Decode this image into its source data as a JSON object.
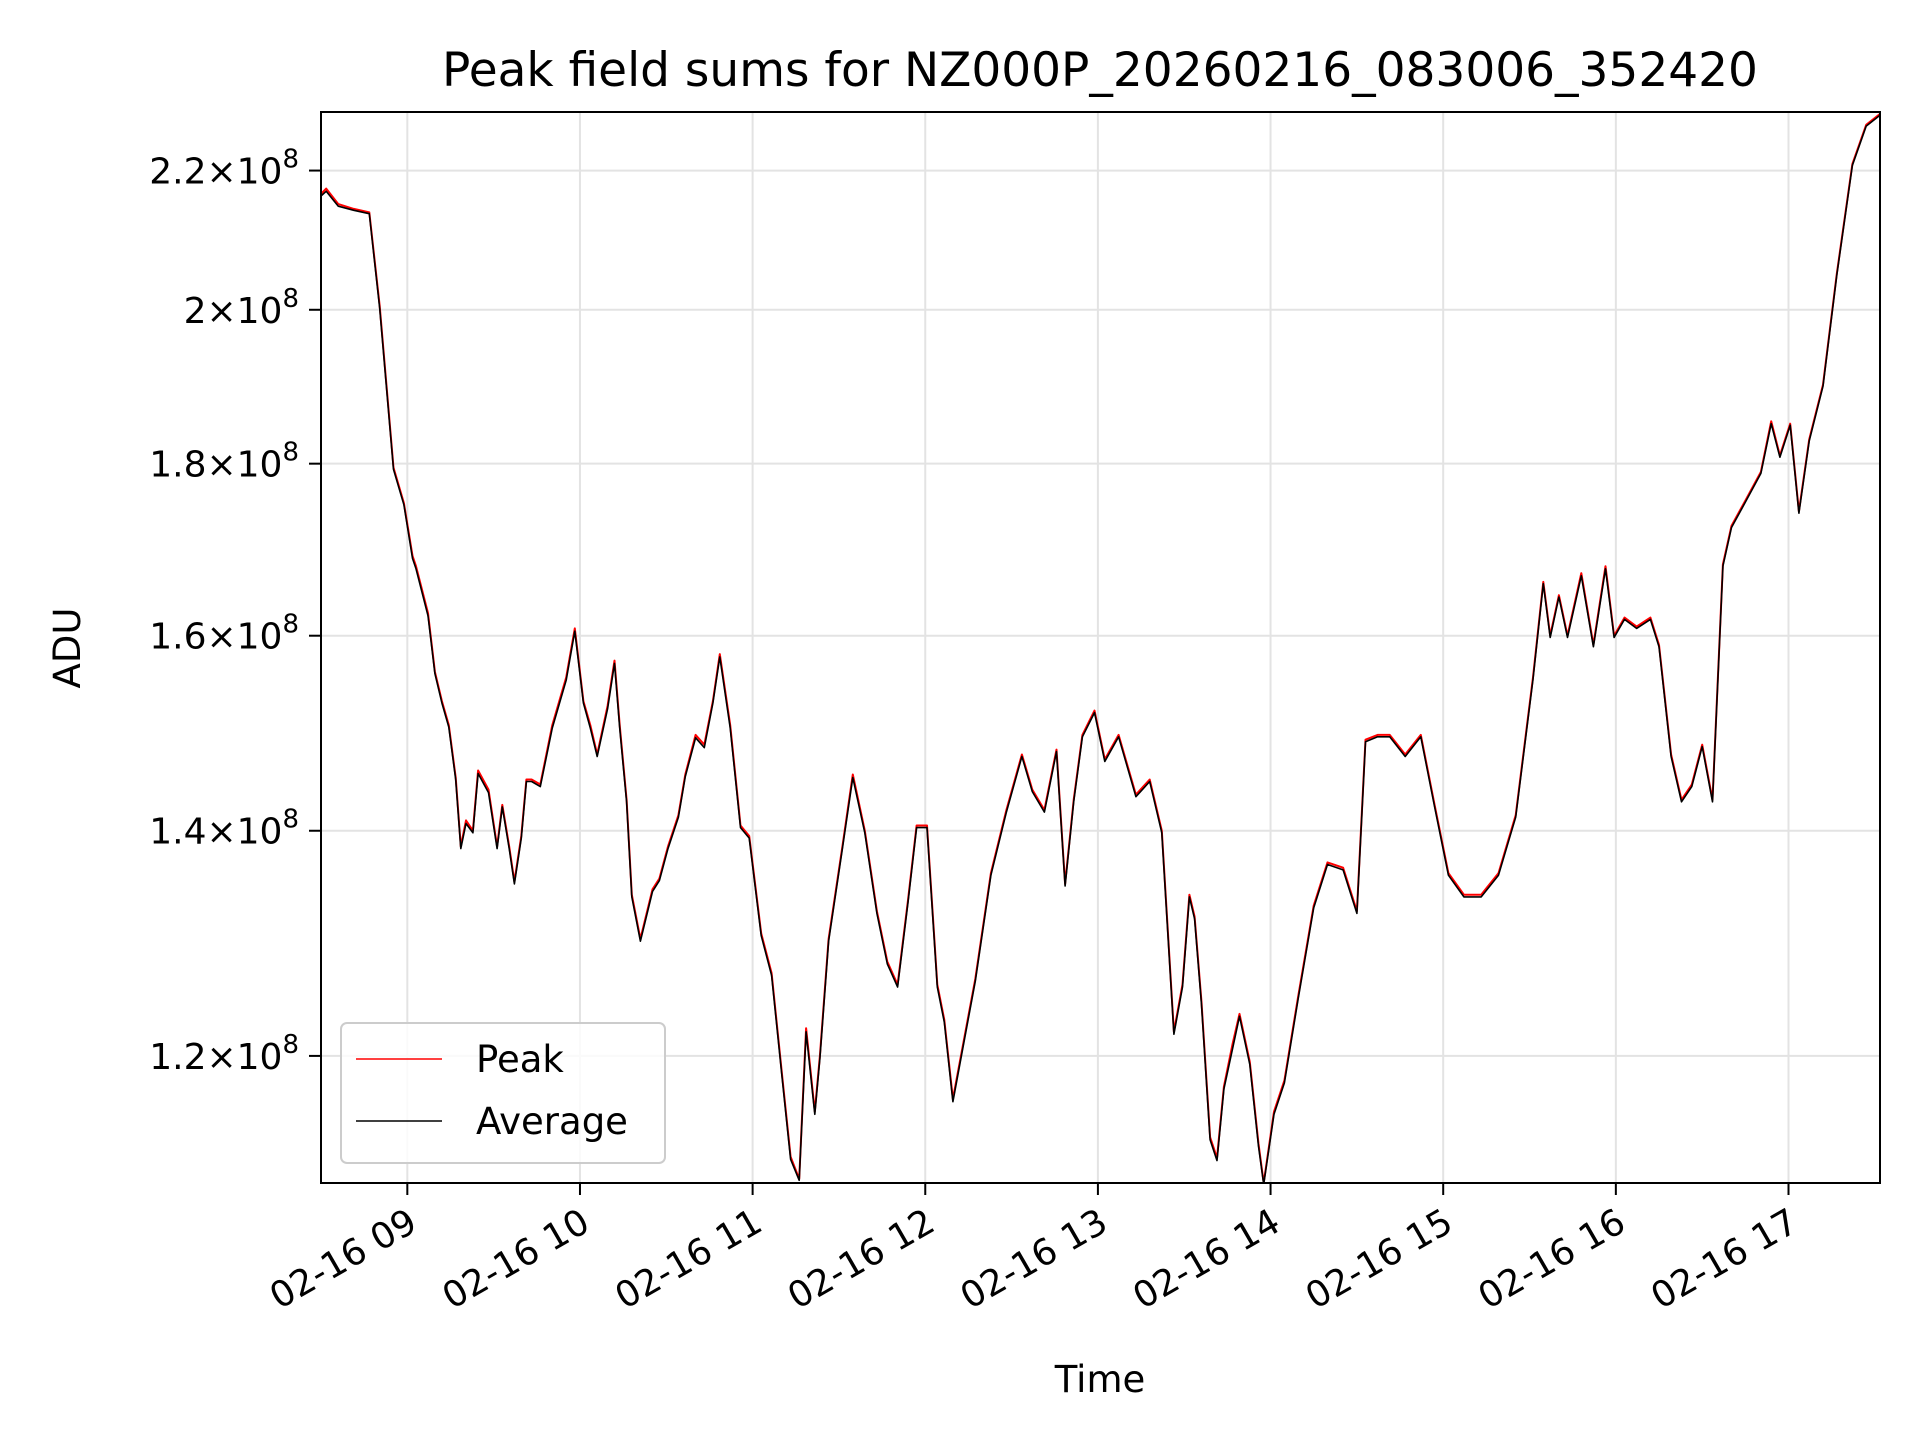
{
  "chart_data": {
    "type": "line",
    "title": "Peak field sums for NZ000P_20260216_083006_352420",
    "xlabel": "Time",
    "ylabel": "ADU",
    "x_unit": "hours since 2026-02-16 00:00",
    "xlim": [
      8.5,
      17.53
    ],
    "ylim": [
      110000000,
      229000000
    ],
    "yscale": "log",
    "grid": true,
    "legend_position": "lower-left",
    "x_ticks": [
      {
        "value": 9,
        "label": "02-16 09"
      },
      {
        "value": 10,
        "label": "02-16 10"
      },
      {
        "value": 11,
        "label": "02-16 11"
      },
      {
        "value": 12,
        "label": "02-16 12"
      },
      {
        "value": 13,
        "label": "02-16 13"
      },
      {
        "value": 14,
        "label": "02-16 14"
      },
      {
        "value": 15,
        "label": "02-16 15"
      },
      {
        "value": 16,
        "label": "02-16 16"
      },
      {
        "value": 17,
        "label": "02-16 17"
      }
    ],
    "y_ticks": [
      {
        "value": 120000000,
        "mantissa": "1.2",
        "exponent": "8"
      },
      {
        "value": 140000000,
        "mantissa": "1.4",
        "exponent": "8"
      },
      {
        "value": 160000000,
        "mantissa": "1.6",
        "exponent": "8"
      },
      {
        "value": 180000000,
        "mantissa": "1.8",
        "exponent": "8"
      },
      {
        "value": 200000000,
        "mantissa": "2",
        "exponent": "8"
      },
      {
        "value": 220000000,
        "mantissa": "2.2",
        "exponent": "8"
      }
    ],
    "times_label": "Average",
    "times": [
      8.5,
      8.53,
      8.6,
      8.69,
      8.78,
      8.84,
      8.92,
      8.98,
      9.03,
      9.05,
      9.12,
      9.16,
      9.2,
      9.24,
      9.28,
      9.31,
      9.34,
      9.38,
      9.41,
      9.47,
      9.52,
      9.55,
      9.59,
      9.62,
      9.66,
      9.69,
      9.72,
      9.77,
      9.84,
      9.92,
      9.97,
      10.02,
      10.06,
      10.1,
      10.16,
      10.2,
      10.23,
      10.27,
      10.3,
      10.35,
      10.42,
      10.46,
      10.51,
      10.57,
      10.61,
      10.67,
      10.72,
      10.77,
      10.81,
      10.87,
      10.93,
      10.98,
      11.05,
      11.11,
      11.17,
      11.22,
      11.27,
      11.31,
      11.36,
      11.39,
      11.44,
      11.52,
      11.58,
      11.65,
      11.72,
      11.78,
      11.84,
      11.9,
      11.95,
      12.01,
      12.07,
      12.11,
      12.16,
      12.22,
      12.29,
      12.38,
      12.47,
      12.56,
      12.62,
      12.69,
      12.76,
      12.81,
      12.86,
      12.91,
      12.98,
      13.04,
      13.12,
      13.22,
      13.3,
      13.37,
      13.44,
      13.49,
      13.53,
      13.56,
      13.6,
      13.65,
      13.69,
      13.73,
      13.78,
      13.82,
      13.88,
      13.93,
      13.96,
      14.02,
      14.08,
      14.16,
      14.25,
      14.33,
      14.42,
      14.5,
      14.55,
      14.62,
      14.69,
      14.78,
      14.87,
      14.95,
      15.03,
      15.12,
      15.22,
      15.32,
      15.42,
      15.52,
      15.58,
      15.62,
      15.67,
      15.72,
      15.8,
      15.87,
      15.94,
      15.99,
      16.05,
      16.12,
      16.2,
      16.25,
      16.32,
      16.38,
      16.44,
      16.5,
      16.56,
      16.62,
      16.67,
      16.75,
      16.84,
      16.9,
      16.95,
      17.01,
      17.06,
      17.12,
      17.2,
      17.28,
      17.37,
      17.45,
      17.53
    ],
    "series": [
      {
        "name": "Peak",
        "color": "#ff0000",
        "values": [
          216500000,
          217300000,
          215000000,
          214300000,
          213800000,
          200500000,
          179500000,
          175200000,
          169000000,
          167800000,
          162500000,
          156100000,
          153000000,
          150500000,
          145200000,
          138500000,
          141000000,
          140000000,
          145900000,
          144000000,
          138500000,
          142500000,
          138500000,
          135200000,
          139500000,
          145000000,
          145000000,
          144500000,
          150500000,
          155500000,
          160800000,
          153000000,
          150500000,
          147500000,
          152500000,
          157300000,
          150500000,
          143000000,
          134000000,
          130000000,
          134500000,
          135500000,
          138500000,
          141500000,
          145500000,
          149500000,
          148500000,
          153000000,
          158000000,
          150500000,
          140500000,
          139500000,
          130500000,
          127000000,
          118500000,
          112000000,
          110300000,
          122300000,
          115500000,
          120000000,
          130000000,
          138500000,
          145500000,
          140000000,
          132500000,
          128000000,
          126000000,
          133500000,
          140500000,
          140500000,
          126000000,
          123000000,
          116500000,
          121000000,
          126500000,
          136000000,
          142000000,
          147500000,
          144000000,
          142000000,
          148000000,
          135000000,
          143000000,
          149500000,
          152000000,
          147000000,
          149500000,
          143500000,
          145000000,
          140000000,
          122000000,
          126000000,
          134000000,
          132000000,
          124500000,
          113500000,
          111900000,
          117500000,
          121000000,
          123500000,
          119500000,
          113000000,
          110000000,
          115500000,
          118000000,
          125000000,
          133000000,
          137000000,
          136500000,
          132500000,
          149000000,
          149500000,
          149500000,
          147500000,
          149500000,
          142500000,
          136000000,
          134000000,
          134000000,
          136000000,
          141500000,
          155500000,
          166000000,
          160000000,
          164500000,
          160000000,
          167000000,
          159000000,
          167800000,
          160000000,
          162000000,
          161000000,
          162000000,
          159000000,
          147500000,
          143000000,
          144500000,
          148500000,
          143000000,
          168000000,
          172500000,
          175500000,
          179000000,
          185300000,
          181000000,
          185000000,
          174200000,
          183000000,
          190000000,
          205000000,
          221000000,
          227000000,
          228700000
        ]
      },
      {
        "name": "Average",
        "color": "#000000",
        "values": [
          216200000,
          216900000,
          214700000,
          214100000,
          213600000,
          200200000,
          179300000,
          175000000,
          168700000,
          167500000,
          162200000,
          155900000,
          152800000,
          150300000,
          145000000,
          138300000,
          140700000,
          139800000,
          145600000,
          143700000,
          138300000,
          142300000,
          138300000,
          135000000,
          139300000,
          144800000,
          144800000,
          144300000,
          150200000,
          155200000,
          160500000,
          152800000,
          150200000,
          147300000,
          152200000,
          157000000,
          150200000,
          142800000,
          133800000,
          129800000,
          134300000,
          135300000,
          138300000,
          141300000,
          145300000,
          149200000,
          148200000,
          152800000,
          157700000,
          150200000,
          140300000,
          139300000,
          130300000,
          126800000,
          118300000,
          111800000,
          110200000,
          122000000,
          115300000,
          119800000,
          129800000,
          138300000,
          145200000,
          139800000,
          132300000,
          127800000,
          125800000,
          133300000,
          140300000,
          140300000,
          125800000,
          122800000,
          116300000,
          120800000,
          126300000,
          135800000,
          141800000,
          147300000,
          143800000,
          141800000,
          147800000,
          134800000,
          142800000,
          149300000,
          151800000,
          146800000,
          149300000,
          143300000,
          144800000,
          139800000,
          121800000,
          125800000,
          133800000,
          131800000,
          124300000,
          113300000,
          111700000,
          117300000,
          120600000,
          123300000,
          119300000,
          112800000,
          109900000,
          115300000,
          117800000,
          124800000,
          132800000,
          136800000,
          136300000,
          132300000,
          148800000,
          149300000,
          149300000,
          147300000,
          149300000,
          142300000,
          135800000,
          133800000,
          133800000,
          135800000,
          141300000,
          155300000,
          165800000,
          159800000,
          164300000,
          159800000,
          166700000,
          158800000,
          167500000,
          159800000,
          161800000,
          160800000,
          161800000,
          158800000,
          147300000,
          142800000,
          144300000,
          148300000,
          142800000,
          167800000,
          172300000,
          175300000,
          178800000,
          185000000,
          180800000,
          184800000,
          174000000,
          182800000,
          189800000,
          204800000,
          220800000,
          226800000,
          228500000
        ]
      }
    ]
  }
}
